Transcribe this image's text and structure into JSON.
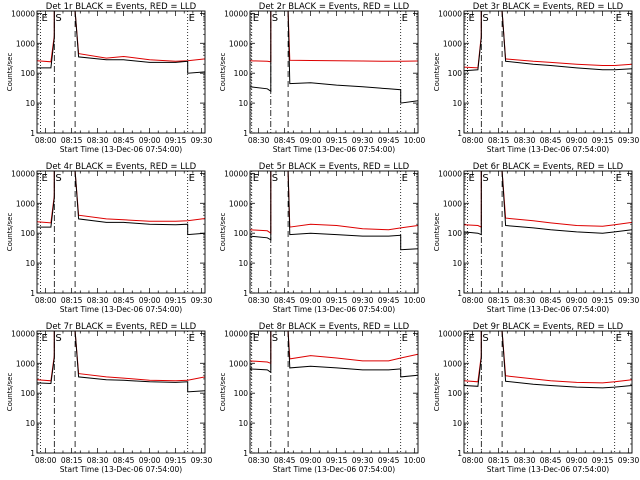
{
  "panel_defaults": {
    "ylabel": "Counts/sec",
    "xlabel": "Start Time (13-Dec-06 07:54:00)",
    "yticks": [
      "1",
      "10",
      "100",
      "1000",
      "10000"
    ],
    "ylim": [
      1,
      12000
    ],
    "scale": "log",
    "colors": {
      "events": "#000000",
      "lld": "#dd0000"
    }
  },
  "chart_data": [
    {
      "type": "line",
      "title": "Det 1r BLACK = Events, RED = LLD",
      "xticks": [
        "08:00",
        "08:15",
        "08:30",
        "08:45",
        "09:00",
        "09:15",
        "09:30"
      ],
      "xlim": [
        "07:55",
        "09:32"
      ],
      "markers": [
        {
          "label": "E",
          "time": "07:57",
          "style": "dotted"
        },
        {
          "label": "S",
          "time": "08:05",
          "style": "dashdot"
        },
        {
          "label": "",
          "time": "08:17",
          "style": "dashed"
        },
        {
          "label": "E",
          "time": "09:22",
          "style": "dotted"
        }
      ],
      "series": [
        {
          "name": "BLACK = Events",
          "x": [
            "07:55",
            "08:03",
            "08:05",
            "08:05",
            "08:17",
            "08:19",
            "08:35",
            "08:45",
            "09:00",
            "09:15",
            "09:22",
            "09:22",
            "09:32"
          ],
          "y": [
            150,
            150,
            1500,
            12000,
            12000,
            350,
            280,
            280,
            230,
            230,
            250,
            100,
            110
          ]
        },
        {
          "name": "RED = LLD",
          "x": [
            "07:55",
            "08:03",
            "08:05",
            "08:05",
            "08:17",
            "08:19",
            "08:35",
            "08:45",
            "09:00",
            "09:15",
            "09:22",
            "09:32"
          ],
          "y": [
            260,
            240,
            1800,
            12000,
            12000,
            450,
            320,
            360,
            280,
            250,
            260,
            300
          ]
        }
      ]
    },
    {
      "type": "line",
      "title": "Det 2r BLACK = Events, RED = LLD",
      "xticks": [
        "08:30",
        "08:45",
        "09:00",
        "09:15",
        "09:30",
        "09:45",
        "10:00"
      ],
      "xlim": [
        "08:25",
        "10:02"
      ],
      "markers": [
        {
          "label": "E",
          "time": "08:26",
          "style": "dotted"
        },
        {
          "label": "S",
          "time": "08:37",
          "style": "dashdot"
        },
        {
          "label": "",
          "time": "08:47",
          "style": "dashed"
        },
        {
          "label": "E",
          "time": "09:52",
          "style": "dotted"
        }
      ],
      "series": [
        {
          "name": "BLACK = Events",
          "x": [
            "08:25",
            "08:35",
            "08:37",
            "08:37",
            "08:47",
            "08:48",
            "09:00",
            "09:15",
            "09:30",
            "09:45",
            "09:52",
            "09:52",
            "10:02"
          ],
          "y": [
            35,
            30,
            25,
            12000,
            12000,
            45,
            48,
            40,
            35,
            30,
            28,
            10,
            12
          ]
        },
        {
          "name": "RED = LLD",
          "x": [
            "08:25",
            "08:35",
            "08:37",
            "08:37",
            "08:47",
            "08:48",
            "09:00",
            "09:15",
            "09:30",
            "09:45",
            "09:52",
            "10:02"
          ],
          "y": [
            260,
            250,
            240,
            12000,
            12000,
            270,
            265,
            260,
            255,
            250,
            250,
            255
          ]
        }
      ]
    },
    {
      "type": "line",
      "title": "Det 3r BLACK = Events, RED = LLD",
      "xticks": [
        "08:00",
        "08:15",
        "08:30",
        "08:45",
        "09:00",
        "09:15",
        "09:30"
      ],
      "xlim": [
        "07:55",
        "09:32"
      ],
      "markers": [
        {
          "label": "E",
          "time": "07:57",
          "style": "dotted"
        },
        {
          "label": "S",
          "time": "08:05",
          "style": "dashdot"
        },
        {
          "label": "",
          "time": "08:17",
          "style": "dashed"
        },
        {
          "label": "E",
          "time": "09:22",
          "style": "dotted"
        }
      ],
      "series": [
        {
          "name": "BLACK = Events",
          "x": [
            "07:55",
            "08:03",
            "08:05",
            "08:05",
            "08:17",
            "08:19",
            "08:35",
            "08:45",
            "09:00",
            "09:15",
            "09:22",
            "09:32"
          ],
          "y": [
            120,
            130,
            1500,
            12000,
            12000,
            250,
            200,
            180,
            150,
            130,
            130,
            140
          ]
        },
        {
          "name": "RED = LLD",
          "x": [
            "07:55",
            "08:03",
            "08:05",
            "08:05",
            "08:17",
            "08:19",
            "08:35",
            "08:45",
            "09:00",
            "09:15",
            "09:22",
            "09:32"
          ],
          "y": [
            160,
            150,
            1800,
            12000,
            12000,
            300,
            250,
            230,
            200,
            180,
            180,
            200
          ]
        }
      ]
    },
    {
      "type": "line",
      "title": "Det 4r BLACK = Events, RED = LLD",
      "xticks": [
        "08:00",
        "08:15",
        "08:30",
        "08:45",
        "09:00",
        "09:15",
        "09:30"
      ],
      "xlim": [
        "07:55",
        "09:32"
      ],
      "markers": [
        {
          "label": "E",
          "time": "07:57",
          "style": "dotted"
        },
        {
          "label": "S",
          "time": "08:05",
          "style": "dashdot"
        },
        {
          "label": "",
          "time": "08:17",
          "style": "dashed"
        },
        {
          "label": "E",
          "time": "09:22",
          "style": "dotted"
        }
      ],
      "series": [
        {
          "name": "BLACK = Events",
          "x": [
            "07:55",
            "08:03",
            "08:05",
            "08:05",
            "08:17",
            "08:19",
            "08:35",
            "08:45",
            "09:00",
            "09:15",
            "09:22",
            "09:22",
            "09:32"
          ],
          "y": [
            160,
            160,
            1500,
            12000,
            12000,
            300,
            230,
            230,
            200,
            190,
            200,
            90,
            100
          ]
        },
        {
          "name": "RED = LLD",
          "x": [
            "07:55",
            "08:03",
            "08:05",
            "08:05",
            "08:17",
            "08:19",
            "08:35",
            "08:45",
            "09:00",
            "09:15",
            "09:22",
            "09:32"
          ],
          "y": [
            240,
            220,
            1800,
            12000,
            12000,
            400,
            300,
            280,
            250,
            250,
            260,
            310
          ]
        }
      ]
    },
    {
      "type": "line",
      "title": "Det 5r BLACK = Events, RED = LLD",
      "xticks": [
        "08:30",
        "08:45",
        "09:00",
        "09:15",
        "09:30",
        "09:45",
        "10:00"
      ],
      "xlim": [
        "08:25",
        "10:02"
      ],
      "markers": [
        {
          "label": "E",
          "time": "08:26",
          "style": "dotted"
        },
        {
          "label": "S",
          "time": "08:37",
          "style": "dashdot"
        },
        {
          "label": "",
          "time": "08:47",
          "style": "dashed"
        },
        {
          "label": "E",
          "time": "09:52",
          "style": "dotted"
        }
      ],
      "series": [
        {
          "name": "BLACK = Events",
          "x": [
            "08:25",
            "08:35",
            "08:37",
            "08:37",
            "08:47",
            "08:48",
            "09:00",
            "09:15",
            "09:30",
            "09:45",
            "09:52",
            "09:52",
            "10:02"
          ],
          "y": [
            80,
            70,
            60,
            12000,
            12000,
            90,
            100,
            90,
            80,
            80,
            85,
            28,
            30
          ]
        },
        {
          "name": "RED = LLD",
          "x": [
            "08:25",
            "08:35",
            "08:37",
            "08:37",
            "08:47",
            "08:48",
            "09:00",
            "09:15",
            "09:30",
            "09:45",
            "09:52",
            "10:02"
          ],
          "y": [
            130,
            120,
            100,
            12000,
            12000,
            160,
            200,
            180,
            140,
            130,
            150,
            180
          ]
        }
      ]
    },
    {
      "type": "line",
      "title": "Det 6r BLACK = Events, RED = LLD",
      "xticks": [
        "08:00",
        "08:15",
        "08:30",
        "08:45",
        "09:00",
        "09:15",
        "09:30"
      ],
      "xlim": [
        "07:55",
        "09:32"
      ],
      "markers": [
        {
          "label": "E",
          "time": "07:57",
          "style": "dotted"
        },
        {
          "label": "S",
          "time": "08:05",
          "style": "dashdot"
        },
        {
          "label": "",
          "time": "08:17",
          "style": "dashed"
        },
        {
          "label": "E",
          "time": "09:22",
          "style": "dotted"
        }
      ],
      "series": [
        {
          "name": "BLACK = Events",
          "x": [
            "07:55",
            "08:03",
            "08:05",
            "08:05",
            "08:17",
            "08:19",
            "08:35",
            "08:45",
            "09:00",
            "09:15",
            "09:22",
            "09:32"
          ],
          "y": [
            110,
            100,
            90,
            12000,
            12000,
            180,
            150,
            130,
            110,
            100,
            110,
            130
          ]
        },
        {
          "name": "RED = LLD",
          "x": [
            "07:55",
            "08:03",
            "08:05",
            "08:05",
            "08:17",
            "08:19",
            "08:35",
            "08:45",
            "09:00",
            "09:15",
            "09:22",
            "09:32"
          ],
          "y": [
            190,
            180,
            160,
            12000,
            12000,
            320,
            260,
            220,
            180,
            170,
            190,
            230
          ]
        }
      ]
    },
    {
      "type": "line",
      "title": "Det 7r BLACK = Events, RED = LLD",
      "xticks": [
        "08:00",
        "08:15",
        "08:30",
        "08:45",
        "09:00",
        "09:15",
        "09:30"
      ],
      "xlim": [
        "07:55",
        "09:32"
      ],
      "markers": [
        {
          "label": "E",
          "time": "07:57",
          "style": "dotted"
        },
        {
          "label": "S",
          "time": "08:05",
          "style": "dashdot"
        },
        {
          "label": "",
          "time": "08:17",
          "style": "dashed"
        },
        {
          "label": "E",
          "time": "09:22",
          "style": "dotted"
        }
      ],
      "series": [
        {
          "name": "BLACK = Events",
          "x": [
            "07:55",
            "08:03",
            "08:05",
            "08:05",
            "08:17",
            "08:19",
            "08:35",
            "08:45",
            "09:00",
            "09:15",
            "09:22",
            "09:22",
            "09:32"
          ],
          "y": [
            220,
            210,
            1500,
            12000,
            12000,
            350,
            280,
            270,
            240,
            230,
            240,
            110,
            120
          ]
        },
        {
          "name": "RED = LLD",
          "x": [
            "07:55",
            "08:03",
            "08:05",
            "08:05",
            "08:17",
            "08:19",
            "08:35",
            "08:45",
            "09:00",
            "09:15",
            "09:22",
            "09:32"
          ],
          "y": [
            280,
            260,
            1800,
            12000,
            12000,
            450,
            350,
            320,
            270,
            260,
            270,
            350
          ]
        }
      ]
    },
    {
      "type": "line",
      "title": "Det 8r BLACK = Events, RED = LLD",
      "xticks": [
        "08:30",
        "08:45",
        "09:00",
        "09:15",
        "09:30",
        "09:45",
        "10:00"
      ],
      "xlim": [
        "08:25",
        "10:02"
      ],
      "markers": [
        {
          "label": "E",
          "time": "08:26",
          "style": "dotted"
        },
        {
          "label": "S",
          "time": "08:37",
          "style": "dashdot"
        },
        {
          "label": "",
          "time": "08:47",
          "style": "dashed"
        },
        {
          "label": "E",
          "time": "09:52",
          "style": "dotted"
        }
      ],
      "series": [
        {
          "name": "BLACK = Events",
          "x": [
            "08:25",
            "08:35",
            "08:37",
            "08:37",
            "08:47",
            "08:48",
            "09:00",
            "09:15",
            "09:30",
            "09:45",
            "09:52",
            "09:52",
            "10:02"
          ],
          "y": [
            650,
            600,
            500,
            12000,
            12000,
            700,
            800,
            700,
            600,
            600,
            650,
            350,
            400
          ]
        },
        {
          "name": "RED = LLD",
          "x": [
            "08:25",
            "08:35",
            "08:37",
            "08:37",
            "08:47",
            "08:48",
            "09:00",
            "09:15",
            "09:30",
            "09:45",
            "09:52",
            "10:02"
          ],
          "y": [
            1200,
            1100,
            1000,
            12000,
            12000,
            1400,
            1800,
            1500,
            1200,
            1200,
            1500,
            2000
          ]
        }
      ]
    },
    {
      "type": "line",
      "title": "Det 9r BLACK = Events, RED = LLD",
      "xticks": [
        "08:00",
        "08:15",
        "08:30",
        "08:45",
        "09:00",
        "09:15",
        "09:30"
      ],
      "xlim": [
        "07:55",
        "09:32"
      ],
      "markers": [
        {
          "label": "E",
          "time": "07:57",
          "style": "dotted"
        },
        {
          "label": "S",
          "time": "08:05",
          "style": "dashdot"
        },
        {
          "label": "",
          "time": "08:17",
          "style": "dashed"
        },
        {
          "label": "E",
          "time": "09:22",
          "style": "dotted"
        }
      ],
      "series": [
        {
          "name": "BLACK = Events",
          "x": [
            "07:55",
            "08:03",
            "08:05",
            "08:05",
            "08:17",
            "08:19",
            "08:35",
            "08:45",
            "09:00",
            "09:15",
            "09:22",
            "09:32"
          ],
          "y": [
            180,
            170,
            1500,
            12000,
            12000,
            250,
            200,
            180,
            160,
            150,
            160,
            180
          ]
        },
        {
          "name": "RED = LLD",
          "x": [
            "07:55",
            "08:03",
            "08:05",
            "08:05",
            "08:17",
            "08:19",
            "08:35",
            "08:45",
            "09:00",
            "09:15",
            "09:22",
            "09:32"
          ],
          "y": [
            260,
            240,
            1800,
            12000,
            12000,
            380,
            300,
            260,
            230,
            220,
            240,
            280
          ]
        }
      ]
    }
  ]
}
